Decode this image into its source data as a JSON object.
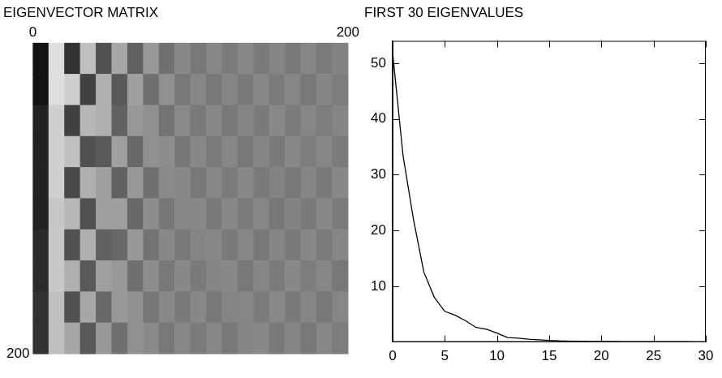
{
  "chart_data": [
    {
      "type": "heatmap",
      "title": "EIGENVECTOR MATRIX",
      "xlim": [
        0,
        200
      ],
      "xticks": [
        0,
        200
      ],
      "ylim": [
        0,
        200
      ],
      "yticks": [
        200
      ],
      "grid": false,
      "cells": [
        [
          -0.7,
          0.6,
          -0.5,
          0.4,
          -0.3,
          0.25,
          -0.2,
          0.15,
          -0.1,
          0.05,
          -0.05,
          0.04,
          -0.03,
          0.05,
          -0.04,
          0.03,
          -0.05,
          0.04,
          -0.03,
          0.02
        ],
        [
          -0.7,
          0.6,
          0.5,
          -0.4,
          0.3,
          -0.25,
          0.2,
          -0.1,
          0.1,
          -0.05,
          0.04,
          -0.05,
          0.03,
          -0.04,
          0.05,
          -0.03,
          0.04,
          -0.05,
          0.03,
          -0.02
        ],
        [
          -0.6,
          0.5,
          -0.4,
          0.35,
          0.3,
          -0.2,
          0.15,
          0.1,
          -0.08,
          0.06,
          -0.04,
          0.05,
          -0.05,
          0.03,
          -0.04,
          0.05,
          -0.03,
          0.04,
          -0.02,
          0.03
        ],
        [
          -0.6,
          0.5,
          0.4,
          -0.3,
          -0.25,
          0.2,
          -0.15,
          0.1,
          0.08,
          -0.06,
          0.05,
          -0.03,
          0.04,
          -0.05,
          0.03,
          -0.04,
          0.05,
          -0.02,
          0.04,
          -0.03
        ],
        [
          -0.6,
          0.5,
          -0.35,
          0.3,
          0.2,
          -0.2,
          0.15,
          -0.1,
          0.06,
          0.05,
          -0.05,
          0.04,
          -0.03,
          0.05,
          -0.04,
          0.02,
          -0.05,
          0.03,
          -0.04,
          0.05
        ],
        [
          -0.6,
          0.45,
          0.35,
          -0.3,
          0.2,
          0.2,
          -0.15,
          0.08,
          -0.06,
          0.04,
          0.05,
          -0.04,
          0.05,
          -0.03,
          0.04,
          -0.05,
          0.02,
          -0.04,
          0.05,
          -0.03
        ],
        [
          -0.55,
          0.45,
          -0.3,
          0.3,
          -0.2,
          -0.15,
          0.15,
          -0.08,
          0.05,
          -0.05,
          0.03,
          0.05,
          -0.04,
          0.04,
          -0.05,
          0.03,
          -0.04,
          0.05,
          -0.03,
          0.04
        ],
        [
          -0.55,
          0.45,
          0.3,
          -0.25,
          0.2,
          0.15,
          -0.1,
          0.08,
          -0.05,
          0.05,
          -0.04,
          0.03,
          0.05,
          -0.05,
          0.04,
          -0.03,
          0.05,
          -0.02,
          0.04,
          -0.05
        ],
        [
          -0.5,
          0.4,
          -0.3,
          0.25,
          -0.15,
          0.15,
          0.1,
          -0.06,
          0.05,
          -0.04,
          0.05,
          -0.05,
          0.03,
          0.04,
          -0.03,
          0.05,
          -0.04,
          0.03,
          -0.05,
          0.04
        ],
        [
          -0.5,
          0.4,
          0.25,
          -0.25,
          0.15,
          -0.1,
          0.1,
          0.06,
          -0.05,
          0.04,
          -0.03,
          0.04,
          -0.05,
          0.03,
          0.05,
          -0.04,
          0.03,
          -0.05,
          0.04,
          -0.02
        ]
      ]
    },
    {
      "type": "line",
      "title": "FIRST 30 EIGENVALUES",
      "x": [
        0,
        1,
        2,
        3,
        4,
        5,
        6,
        7,
        8,
        9,
        10,
        11,
        12,
        13,
        14,
        15,
        16,
        17,
        18,
        19,
        20,
        21,
        22,
        23,
        24,
        25,
        26,
        27,
        28,
        29
      ],
      "values": [
        52,
        33.5,
        22,
        12.5,
        8,
        5.5,
        4.8,
        3.8,
        2.6,
        2.3,
        1.6,
        0.8,
        0.7,
        0.5,
        0.4,
        0.3,
        0.2,
        0.15,
        0.1,
        0.08,
        0.06,
        0.05,
        0.04,
        0.04,
        0.03,
        0.03,
        0.02,
        0.02,
        0.02,
        0.01
      ],
      "color": "#000000",
      "xlim": [
        0,
        30
      ],
      "xticks": [
        0,
        5,
        10,
        15,
        20,
        25,
        30
      ],
      "ylim": [
        0,
        54
      ],
      "yticks": [
        10,
        20,
        30,
        40,
        50
      ],
      "grid": false
    }
  ]
}
